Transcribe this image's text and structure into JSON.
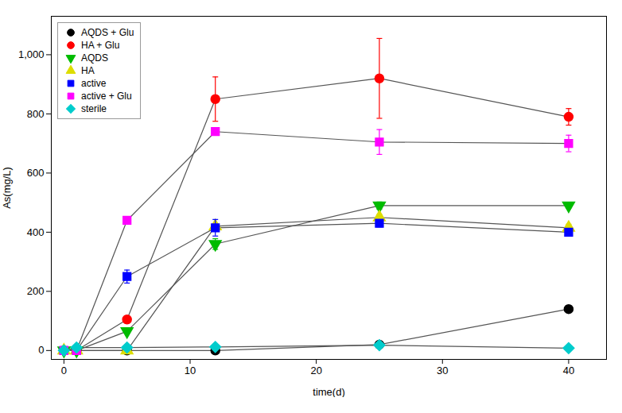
{
  "chart_data": {
    "type": "line",
    "xlabel": "time(d)",
    "ylabel": "As(mg/L)",
    "color": "#555555",
    "x": [
      0,
      1,
      5,
      12,
      25,
      40
    ],
    "series": [
      {
        "name": "AQDS + Glu",
        "color": "#000000",
        "marker": "circle",
        "values": [
          0,
          0,
          0,
          0,
          20,
          140
        ],
        "yerr": [
          0,
          0,
          0,
          0,
          8,
          12
        ]
      },
      {
        "name": "HA + Glu",
        "color": "#ff0000",
        "marker": "circle",
        "values": [
          0,
          0,
          105,
          850,
          920,
          790
        ],
        "yerr": [
          0,
          0,
          12,
          75,
          135,
          28
        ]
      },
      {
        "name": "AQDS",
        "color": "#00bb00",
        "marker": "triangle-down",
        "values": [
          0,
          0,
          65,
          360,
          490,
          490
        ],
        "yerr": [
          0,
          0,
          5,
          18,
          12,
          8
        ]
      },
      {
        "name": "HA",
        "color": "#dddd00",
        "marker": "triangle-up",
        "values": [
          0,
          0,
          0,
          420,
          450,
          415
        ],
        "yerr": [
          0,
          0,
          0,
          8,
          10,
          12
        ]
      },
      {
        "name": "active",
        "color": "#0000ff",
        "marker": "square",
        "values": [
          0,
          0,
          250,
          415,
          430,
          400
        ],
        "yerr": [
          0,
          0,
          22,
          28,
          12,
          10
        ]
      },
      {
        "name": "active + Glu",
        "color": "#ff00ff",
        "marker": "square",
        "values": [
          0,
          0,
          440,
          740,
          705,
          700
        ],
        "yerr": [
          0,
          0,
          8,
          10,
          42,
          28
        ]
      },
      {
        "name": "sterile",
        "color": "#00cccc",
        "marker": "diamond",
        "values": [
          0,
          10,
          10,
          12,
          18,
          8
        ],
        "yerr": [
          0,
          3,
          3,
          3,
          3,
          3
        ]
      }
    ],
    "xlim": [
      -1,
      43
    ],
    "ylim": [
      -30,
      1130
    ],
    "xticks": [
      0,
      10,
      20,
      30,
      40
    ],
    "yticks": [
      0,
      200,
      400,
      600,
      800,
      1000
    ],
    "grid": false,
    "legend": "upper left"
  }
}
